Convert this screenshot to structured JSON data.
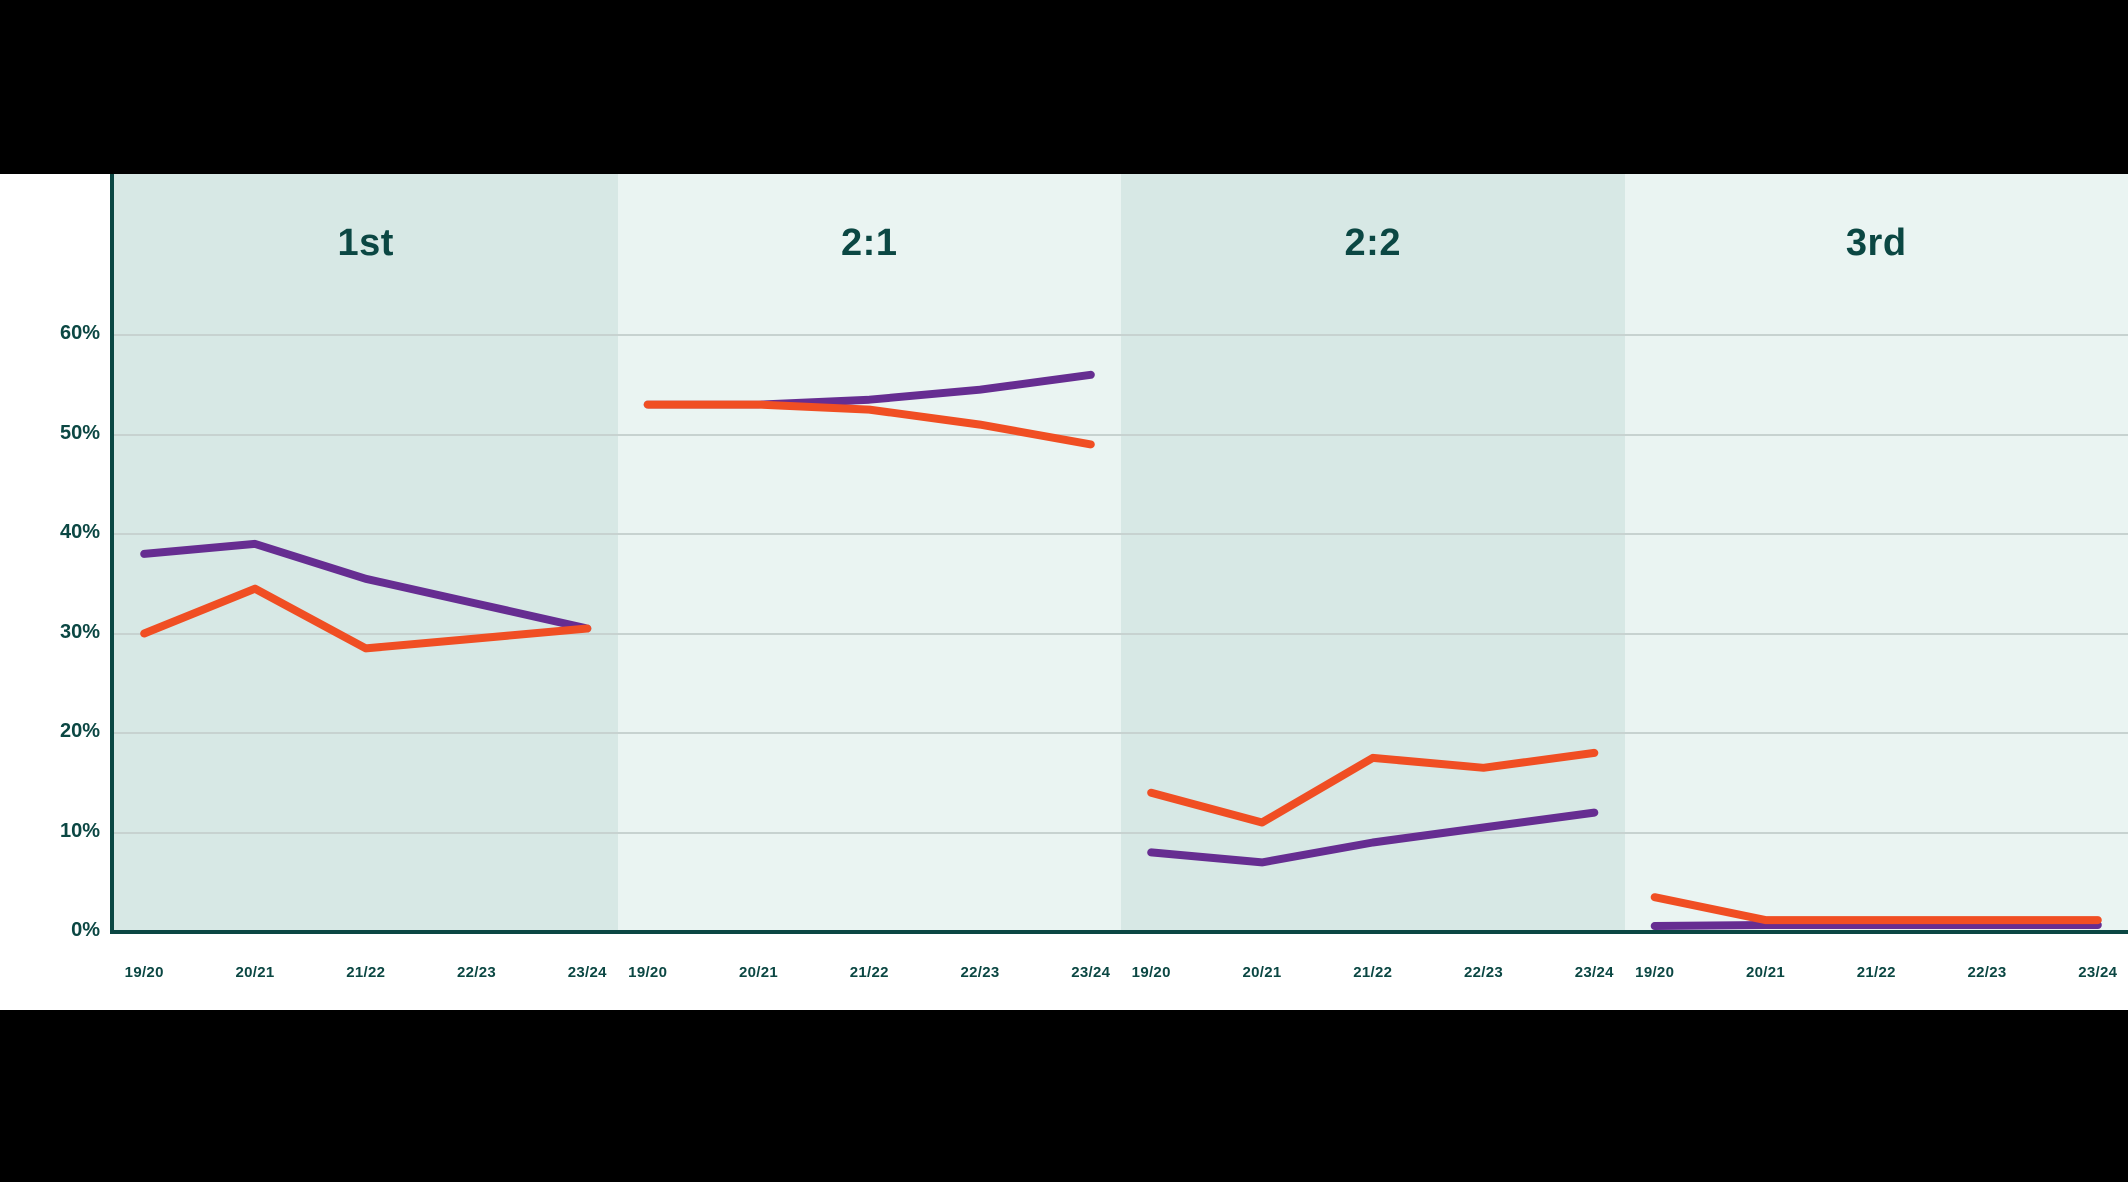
{
  "chart_data": {
    "type": "line",
    "title": "",
    "description": "Percentage of degree classifications awarded per academic year, split into four panels by degree class",
    "x_tick_labels": [
      "19/20",
      "20/21",
      "21/22",
      "22/23",
      "23/24"
    ],
    "y_ticks": [
      {
        "label": "60%",
        "value": 60
      },
      {
        "label": "50%",
        "value": 50
      },
      {
        "label": "40%",
        "value": 40
      },
      {
        "label": "30%",
        "value": 30
      },
      {
        "label": "20%",
        "value": 20
      },
      {
        "label": "10%",
        "value": 10
      },
      {
        "label": "0%",
        "value": 0
      }
    ],
    "ylim": [
      0,
      60
    ],
    "grid": true,
    "legend": "none",
    "series": [
      {
        "id": "purple",
        "name": "purple-line",
        "color": "#662d91"
      },
      {
        "id": "orange",
        "name": "orange-line",
        "color": "#f04e23"
      }
    ],
    "panels": [
      {
        "label": "1st",
        "values": {
          "purple": [
            38,
            39,
            35.5,
            33,
            30.5
          ],
          "orange": [
            30,
            34.5,
            28.5,
            29.5,
            30.5
          ]
        }
      },
      {
        "label": "2:1",
        "values": {
          "purple": [
            53,
            53,
            53.5,
            54.5,
            56
          ],
          "orange": [
            53,
            53,
            52.5,
            51,
            49
          ]
        }
      },
      {
        "label": "2:2",
        "values": {
          "purple": [
            8,
            7,
            9,
            10.5,
            12
          ],
          "orange": [
            14,
            11,
            17.5,
            16.5,
            18
          ]
        }
      },
      {
        "label": "3rd",
        "values": {
          "purple": [
            0.6,
            0.7,
            0.7,
            0.7,
            0.7
          ],
          "orange": [
            3.5,
            1.2,
            1.2,
            1.2,
            1.2
          ]
        }
      }
    ],
    "layout": {
      "background": "#000000",
      "card_background": "#ffffff",
      "band_colors": [
        "#d7e8e5",
        "#eaf4f2"
      ],
      "header_color": "#0b4743",
      "axis_color": "#0b4743",
      "gridline_color": "#c7d2d0",
      "line_width": 8
    }
  }
}
